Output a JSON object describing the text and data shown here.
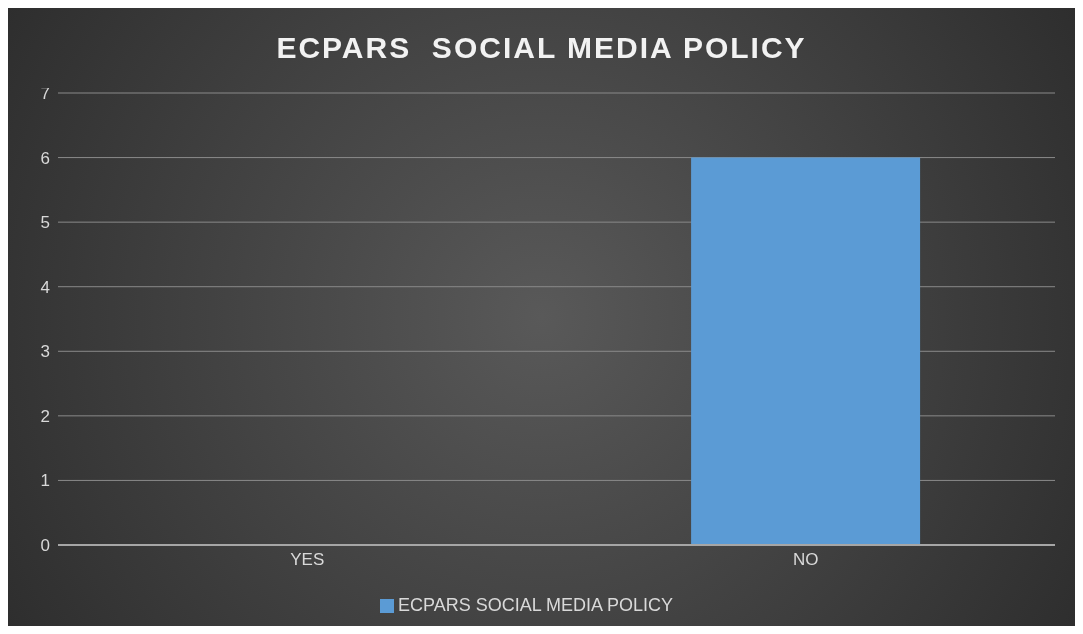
{
  "chart_data": {
    "type": "bar",
    "title": "ECPARS  SOCIAL MEDIA POLICY",
    "categories": [
      "YES",
      "NO"
    ],
    "series": [
      {
        "name": "ECPARS  SOCIAL MEDIA POLICY",
        "color": "#5b9bd5",
        "values": [
          0,
          6
        ]
      }
    ],
    "ylim": [
      0,
      7
    ],
    "yticks": [
      0,
      1,
      2,
      3,
      4,
      5,
      6,
      7
    ],
    "grid": "y",
    "legend": "bottom"
  }
}
